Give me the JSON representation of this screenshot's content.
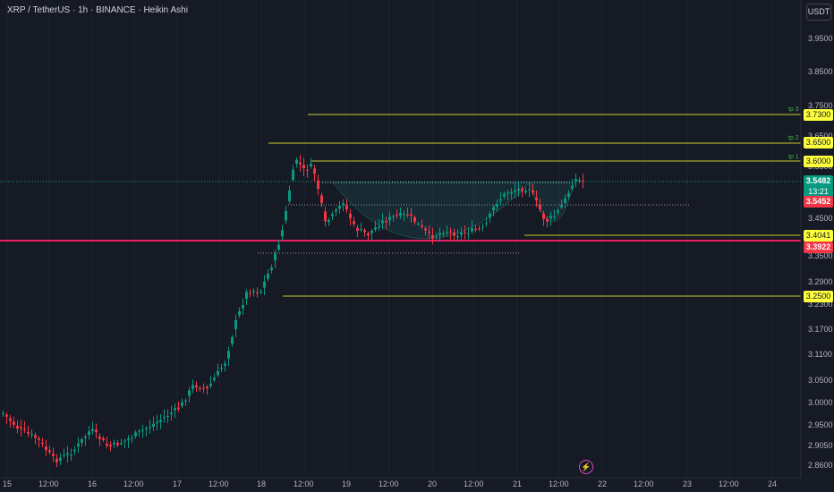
{
  "header": {
    "title": "XRP / TetherUS · 1h · BINANCE · Heikin Ashi",
    "currency": "USDT"
  },
  "chart_data": {
    "type": "candlestick",
    "style": "Heikin Ashi",
    "symbol": "XRP / TetherUS",
    "interval": "1h",
    "exchange": "BINANCE",
    "y_ticks": [
      "3.9500",
      "3.8500",
      "3.7500",
      "3.6500",
      "3.5500",
      "3.4500",
      "3.3500",
      "3.2900",
      "3.2300",
      "3.1700",
      "3.1100",
      "3.0500",
      "3.0000",
      "2.9500",
      "2.9050",
      "2.8600"
    ],
    "x_ticks": [
      "15",
      "12:00",
      "16",
      "12:00",
      "17",
      "12:00",
      "18",
      "12:00",
      "19",
      "12:00",
      "20",
      "12:00",
      "21",
      "12:00",
      "22",
      "12:00",
      "23",
      "12:00",
      "24"
    ],
    "price_tags": {
      "tp3": "3.7300",
      "tp2": "3.6500",
      "tp1": "3.6000",
      "current_price": "3.5482",
      "countdown": "13:21",
      "red_level": "3.5452",
      "support": "3.4041",
      "pink_level": "3.3922",
      "low_target": "3.2500"
    },
    "level_labels": [
      "tp 3",
      "tp 2",
      "tp 1"
    ],
    "horizontal_lines": [
      {
        "price": 3.73,
        "color": "#c8cc2e"
      },
      {
        "price": 3.65,
        "color": "#c8cc2e"
      },
      {
        "price": 3.6,
        "color": "#c8cc2e"
      },
      {
        "price": 3.4041,
        "color": "#c8cc2e"
      },
      {
        "price": 3.25,
        "color": "#c8cc2e"
      },
      {
        "price": 3.3922,
        "color": "#e91e63"
      }
    ],
    "pattern": "cup and handle",
    "colors": {
      "up": "#089981",
      "down": "#f23645"
    }
  },
  "icons": {
    "bottom": "lightning-icon",
    "lightning_glyph": "⚡"
  }
}
